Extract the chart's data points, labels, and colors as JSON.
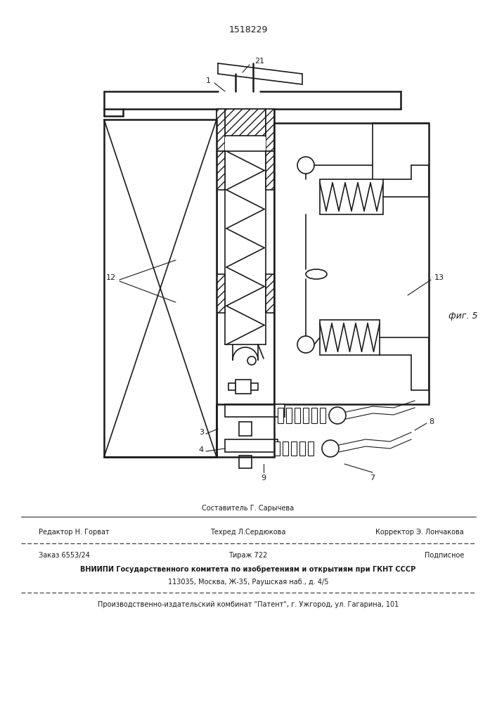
{
  "patent_number": "1518229",
  "fig_label": "фиг. 5",
  "bg_color": "#ffffff",
  "line_color": "#1a1a1a",
  "footer_line1_top": "Составитель Г. Сарычева",
  "footer_line1_left": "Редактор Н. Горват",
  "footer_line1_center": "Техред Л.Сердюкова",
  "footer_line1_right": "Корректор Э. Лончакова",
  "footer_line2_left": "Заказ 6553/24",
  "footer_line2_center": "Тираж 722",
  "footer_line2_right": "Подписное",
  "footer_line3": "ВНИИПИ Государственного комитета по изобретениям и открытиям при ГКНТ СССР",
  "footer_line4": "113035, Москва, Ж-35, Раушская наб., д. 4/5",
  "footer_line5": "Производственно-издательский комбинат \"Патент\", г. Ужгород, ул. Гагарина, 101"
}
